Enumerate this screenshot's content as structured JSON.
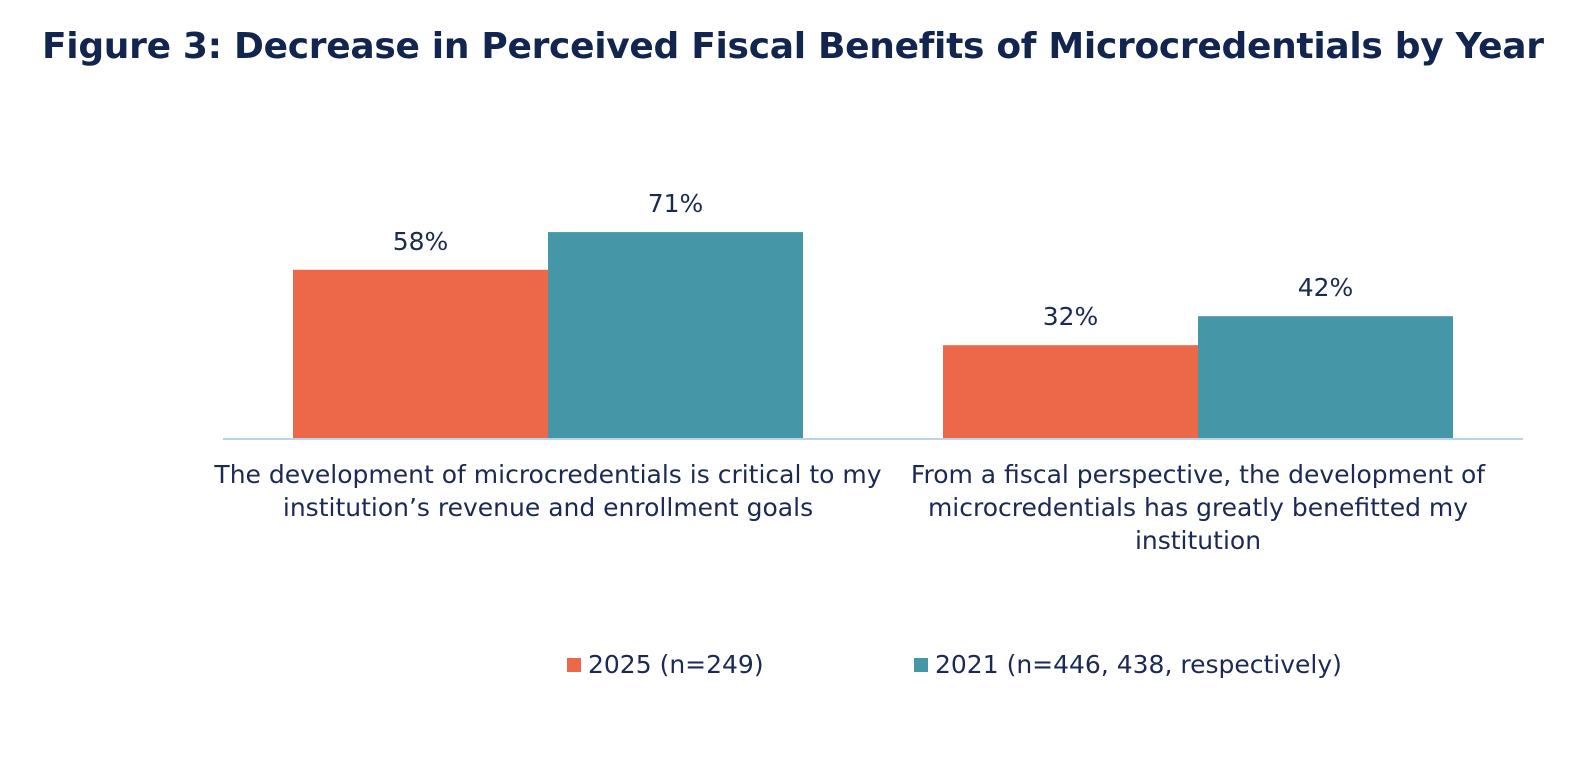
{
  "chart_data": {
    "type": "bar",
    "title": "Figure 3: Decrease in Perceived Fiscal Benefits of Microcredentials by Year",
    "categories": [
      "The development of microcredentials is critical to my institution’s revenue and enrollment goals",
      "From a fiscal perspective, the development of microcredentials has greatly benefitted my institution"
    ],
    "series": [
      {
        "name": "2025 (n=249)",
        "values": [
          58,
          32
        ],
        "labels": [
          "58%",
          "32%"
        ],
        "color": "#ec6848"
      },
      {
        "name": "2021 (n=446, 438, respectively)",
        "values": [
          71,
          42
        ],
        "labels": [
          "71%",
          "42%"
        ],
        "color": "#4596a7"
      }
    ],
    "ylim": [
      0,
      100
    ],
    "xlabel": "",
    "ylabel": "",
    "grid": false,
    "legend": "bottom",
    "axis_color": "#b7d6ea"
  }
}
